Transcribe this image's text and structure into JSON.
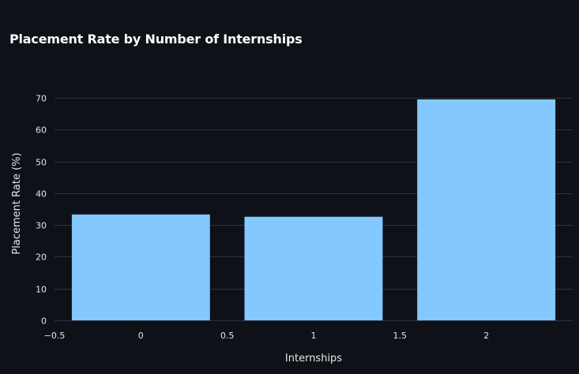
{
  "chart_data": {
    "type": "bar",
    "title": "Placement Rate by Number of Internships",
    "xlabel": "Internships",
    "ylabel": "Placement Rate (%)",
    "x": [
      0,
      1,
      2
    ],
    "values": [
      33.3,
      32.6,
      69.5
    ],
    "xlim": [
      -0.5,
      2.5
    ],
    "ylim": [
      0,
      72
    ],
    "x_ticks": [
      -0.5,
      0,
      0.5,
      1,
      1.5,
      2
    ],
    "x_tick_labels": [
      "−0.5",
      "0",
      "0.5",
      "1",
      "1.5",
      "2"
    ],
    "y_ticks": [
      0,
      10,
      20,
      30,
      40,
      50,
      60,
      70
    ],
    "y_tick_labels": [
      "0",
      "10",
      "20",
      "30",
      "40",
      "50",
      "60",
      "70"
    ],
    "bar_width": 0.8,
    "grid": true,
    "colors": {
      "background": "#0e1117",
      "bar": "#83c9ff",
      "grid": "#31333f",
      "text": "#e6e6e6",
      "title": "#fafafa"
    }
  }
}
